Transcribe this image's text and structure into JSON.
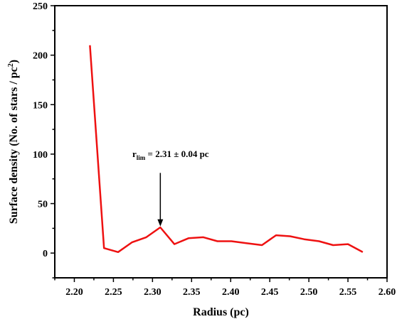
{
  "chart_data": {
    "type": "line",
    "xlabel": "Radius (pc)",
    "ylabel_main": "Surface density (No. of stars / pc",
    "ylabel_sup": "2",
    "ylabel_tail": ")",
    "xlim": [
      2.175,
      2.6
    ],
    "ylim": [
      -25,
      250
    ],
    "x_ticks": [
      2.2,
      2.25,
      2.3,
      2.35,
      2.4,
      2.45,
      2.5,
      2.55,
      2.6
    ],
    "x_tick_labels": [
      "2.20",
      "2.25",
      "2.30",
      "2.35",
      "2.40",
      "2.45",
      "2.50",
      "2.55",
      "2.60"
    ],
    "y_ticks": [
      0,
      50,
      100,
      150,
      200,
      250
    ],
    "y_tick_labels": [
      "0",
      "50",
      "100",
      "150",
      "200",
      "250"
    ],
    "series": [
      {
        "color": "#ee1111",
        "x": [
          2.22,
          2.238,
          2.256,
          2.274,
          2.292,
          2.31,
          2.328,
          2.346,
          2.365,
          2.383,
          2.401,
          2.42,
          2.44,
          2.458,
          2.476,
          2.494,
          2.513,
          2.531,
          2.55,
          2.569
        ],
        "y": [
          210,
          5,
          1,
          11,
          16,
          26,
          9,
          15,
          16,
          12,
          12,
          10,
          8,
          18,
          17,
          14,
          12,
          8,
          9,
          1
        ]
      }
    ],
    "annotation": {
      "text_main": "r",
      "text_sub": "lim",
      "text_rest": " = 2.31 ± 0.04 pc",
      "arrow_x": 2.31,
      "arrow_from_y": 81,
      "arrow_to_y": 27
    },
    "grid": false,
    "legend": "none"
  }
}
